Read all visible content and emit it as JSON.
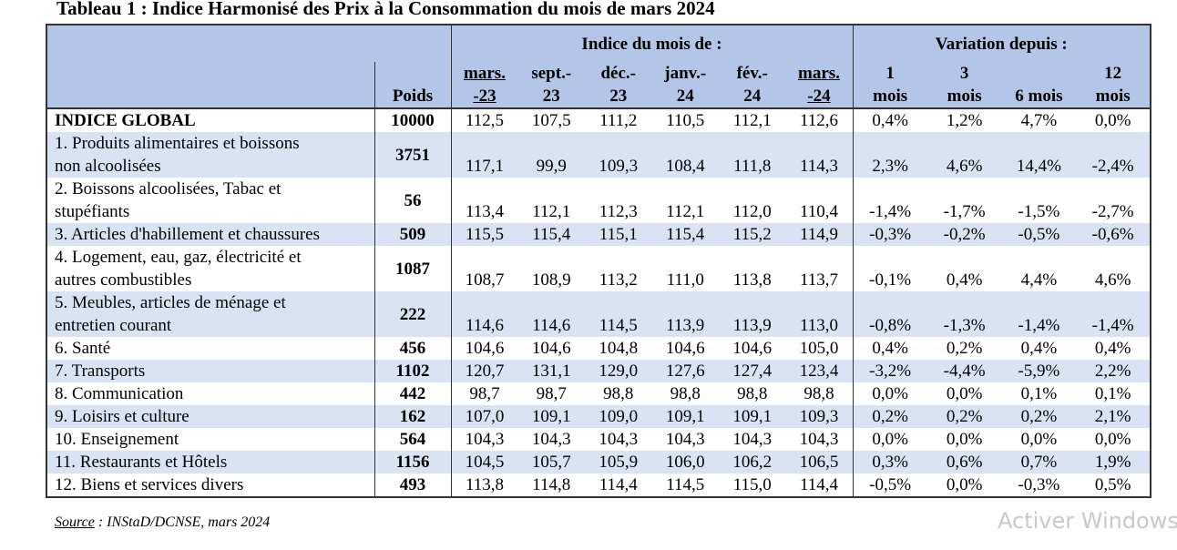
{
  "title": "Tableau 1 : Indice Harmonisé des Prix à la Consommation du mois de mars 2024",
  "table": {
    "group_headers": [
      "Indice du mois de :",
      "Variation depuis :"
    ],
    "columns": [
      [
        "Poids"
      ],
      [
        "mars.",
        "-23"
      ],
      [
        "sept.-",
        "23"
      ],
      [
        "déc.-",
        "23"
      ],
      [
        "janv.-",
        "24"
      ],
      [
        "fév.-",
        "24"
      ],
      [
        "mars.",
        "-24"
      ],
      [
        "1",
        "mois"
      ],
      [
        "3",
        "mois"
      ],
      [
        "6 mois"
      ],
      [
        "12",
        "mois"
      ]
    ],
    "rows": [
      {
        "label": [
          "INDICE GLOBAL"
        ],
        "weight": "10000",
        "values": [
          "112,5",
          "107,5",
          "111,2",
          "110,5",
          "112,1",
          "112,6",
          "0,4%",
          "1,2%",
          "4,7%",
          "0,0%"
        ]
      },
      {
        "label": [
          "1. Produits alimentaires et boissons",
          "non alcoolisées"
        ],
        "weight": "3751",
        "values": [
          "117,1",
          "99,9",
          "109,3",
          "108,4",
          "111,8",
          "114,3",
          "2,3%",
          "4,6%",
          "14,4%",
          "-2,4%"
        ]
      },
      {
        "label": [
          "2. Boissons alcoolisées, Tabac et",
          "stupéfiants"
        ],
        "weight": "56",
        "values": [
          "113,4",
          "112,1",
          "112,3",
          "112,1",
          "112,0",
          "110,4",
          "-1,4%",
          "-1,7%",
          "-1,5%",
          "-2,7%"
        ]
      },
      {
        "label": [
          "3. Articles d'habillement et chaussures"
        ],
        "weight": "509",
        "values": [
          "115,5",
          "115,4",
          "115,1",
          "115,4",
          "115,2",
          "114,9",
          "-0,3%",
          "-0,2%",
          "-0,5%",
          "-0,6%"
        ]
      },
      {
        "label": [
          "4. Logement, eau, gaz, électricité et",
          "autres combustibles"
        ],
        "weight": "1087",
        "values": [
          "108,7",
          "108,9",
          "113,2",
          "111,0",
          "113,8",
          "113,7",
          "-0,1%",
          "0,4%",
          "4,4%",
          "4,6%"
        ]
      },
      {
        "label": [
          "5. Meubles, articles de ménage et",
          "entretien courant"
        ],
        "weight": "222",
        "values": [
          "114,6",
          "114,6",
          "114,5",
          "113,9",
          "113,9",
          "113,0",
          "-0,8%",
          "-1,3%",
          "-1,4%",
          "-1,4%"
        ]
      },
      {
        "label": [
          "6. Santé"
        ],
        "weight": "456",
        "values": [
          "104,6",
          "104,6",
          "104,8",
          "104,6",
          "104,6",
          "105,0",
          "0,4%",
          "0,2%",
          "0,4%",
          "0,4%"
        ]
      },
      {
        "label": [
          "7. Transports"
        ],
        "weight": "1102",
        "values": [
          "120,7",
          "131,1",
          "129,0",
          "127,6",
          "127,4",
          "123,4",
          "-3,2%",
          "-4,4%",
          "-5,9%",
          "2,2%"
        ]
      },
      {
        "label": [
          "8. Communication"
        ],
        "weight": "442",
        "values": [
          "98,7",
          "98,7",
          "98,8",
          "98,8",
          "98,8",
          "98,8",
          "0,0%",
          "0,0%",
          "0,1%",
          "0,1%"
        ]
      },
      {
        "label": [
          "9. Loisirs et culture"
        ],
        "weight": "162",
        "values": [
          "107,0",
          "109,1",
          "109,0",
          "109,1",
          "109,1",
          "109,3",
          "0,2%",
          "0,2%",
          "0,2%",
          "2,1%"
        ]
      },
      {
        "label": [
          "10. Enseignement"
        ],
        "weight": "564",
        "values": [
          "104,3",
          "104,3",
          "104,3",
          "104,3",
          "104,3",
          "104,3",
          "0,0%",
          "0,0%",
          "0,0%",
          "0,0%"
        ]
      },
      {
        "label": [
          "11. Restaurants et Hôtels"
        ],
        "weight": "1156",
        "values": [
          "104,5",
          "105,7",
          "105,9",
          "106,0",
          "106,2",
          "106,5",
          "0,3%",
          "0,6%",
          "0,7%",
          "1,9%"
        ]
      },
      {
        "label": [
          "12. Biens et services divers"
        ],
        "weight": "493",
        "values": [
          "113,8",
          "114,8",
          "114,4",
          "114,5",
          "115,0",
          "114,4",
          "-0,5%",
          "0,0%",
          "-0,3%",
          "0,5%"
        ]
      }
    ]
  },
  "source": {
    "label": "Source",
    "text": " : INStaD/DCNSE, mars 2024"
  },
  "watermark": "Activer Windows"
}
